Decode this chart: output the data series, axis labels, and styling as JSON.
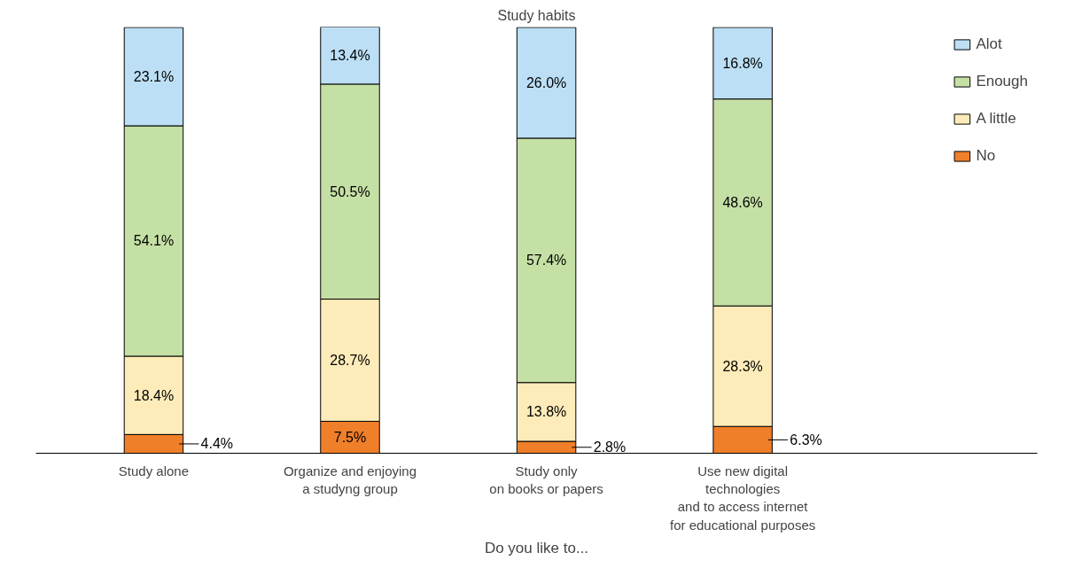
{
  "chart_data": {
    "type": "bar",
    "stacked": true,
    "title": "Study habits",
    "xlabel": "Do you like to...",
    "categories": [
      "Study alone",
      "Organize and enjoying\na studyng group",
      "Study only\non books or papers",
      "Use new digital\ntechnologies\nand to access internet\nfor educational purposes"
    ],
    "series": [
      {
        "name": "No",
        "color": "#f07f2a",
        "values": [
          4.4,
          7.5,
          2.8,
          6.3
        ],
        "value_labels": [
          "4.4%",
          "7.5%",
          "2.8%",
          "6.3%"
        ]
      },
      {
        "name": "A little",
        "color": "#fdecb9",
        "values": [
          18.4,
          28.7,
          13.8,
          28.3
        ],
        "value_labels": [
          "18.4%",
          "28.7%",
          "13.8%",
          "28.3%"
        ]
      },
      {
        "name": "Enough",
        "color": "#c5e0a5",
        "values": [
          54.1,
          50.5,
          57.4,
          48.6
        ],
        "value_labels": [
          "54.1%",
          "50.5%",
          "57.4%",
          "48.6%"
        ]
      },
      {
        "name": "Alot",
        "color": "#bcdff5",
        "values": [
          23.1,
          13.4,
          26.0,
          16.8
        ],
        "value_labels": [
          "23.1%",
          "13.4%",
          "26.0%",
          "16.8%"
        ]
      }
    ],
    "legend": "top right",
    "tick_labels": "x"
  }
}
